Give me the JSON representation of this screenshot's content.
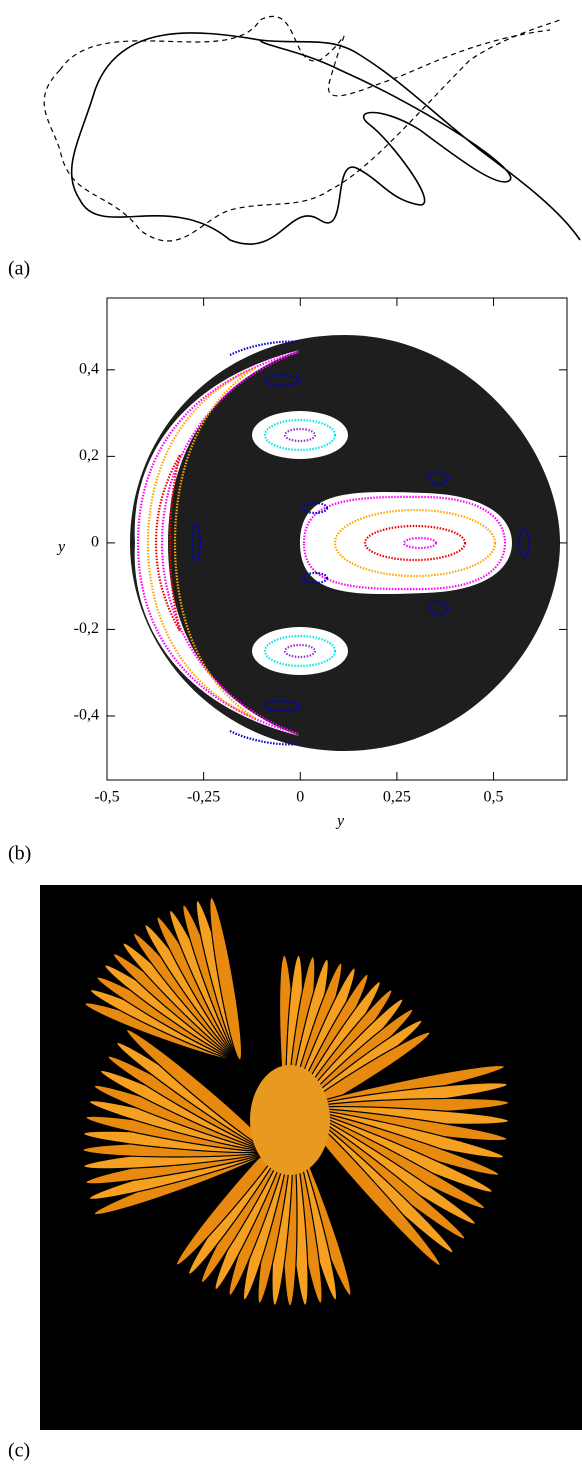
{
  "panel_labels": [
    "(a)",
    "(b)",
    "(c)"
  ],
  "chart_data": {
    "type": "scatter",
    "x_label": "y",
    "y_label": "y",
    "xlim": [
      -0.5,
      0.69
    ],
    "ylim": [
      -0.548,
      0.566
    ],
    "xticks": [
      {
        "value": -0.5,
        "label": "-0,5"
      },
      {
        "value": -0.25,
        "label": "-0,25"
      },
      0,
      {
        "value": 0.25,
        "label": "0,25"
      },
      {
        "value": 0.5,
        "label": "0,5"
      }
    ],
    "yticks": [
      {
        "value": -0.4,
        "label": "-0,4"
      },
      {
        "value": -0.2,
        "label": "-0,2"
      },
      0,
      {
        "value": 0.2,
        "label": "0,2"
      },
      {
        "value": 0.4,
        "label": "0,4"
      }
    ]
  }
}
